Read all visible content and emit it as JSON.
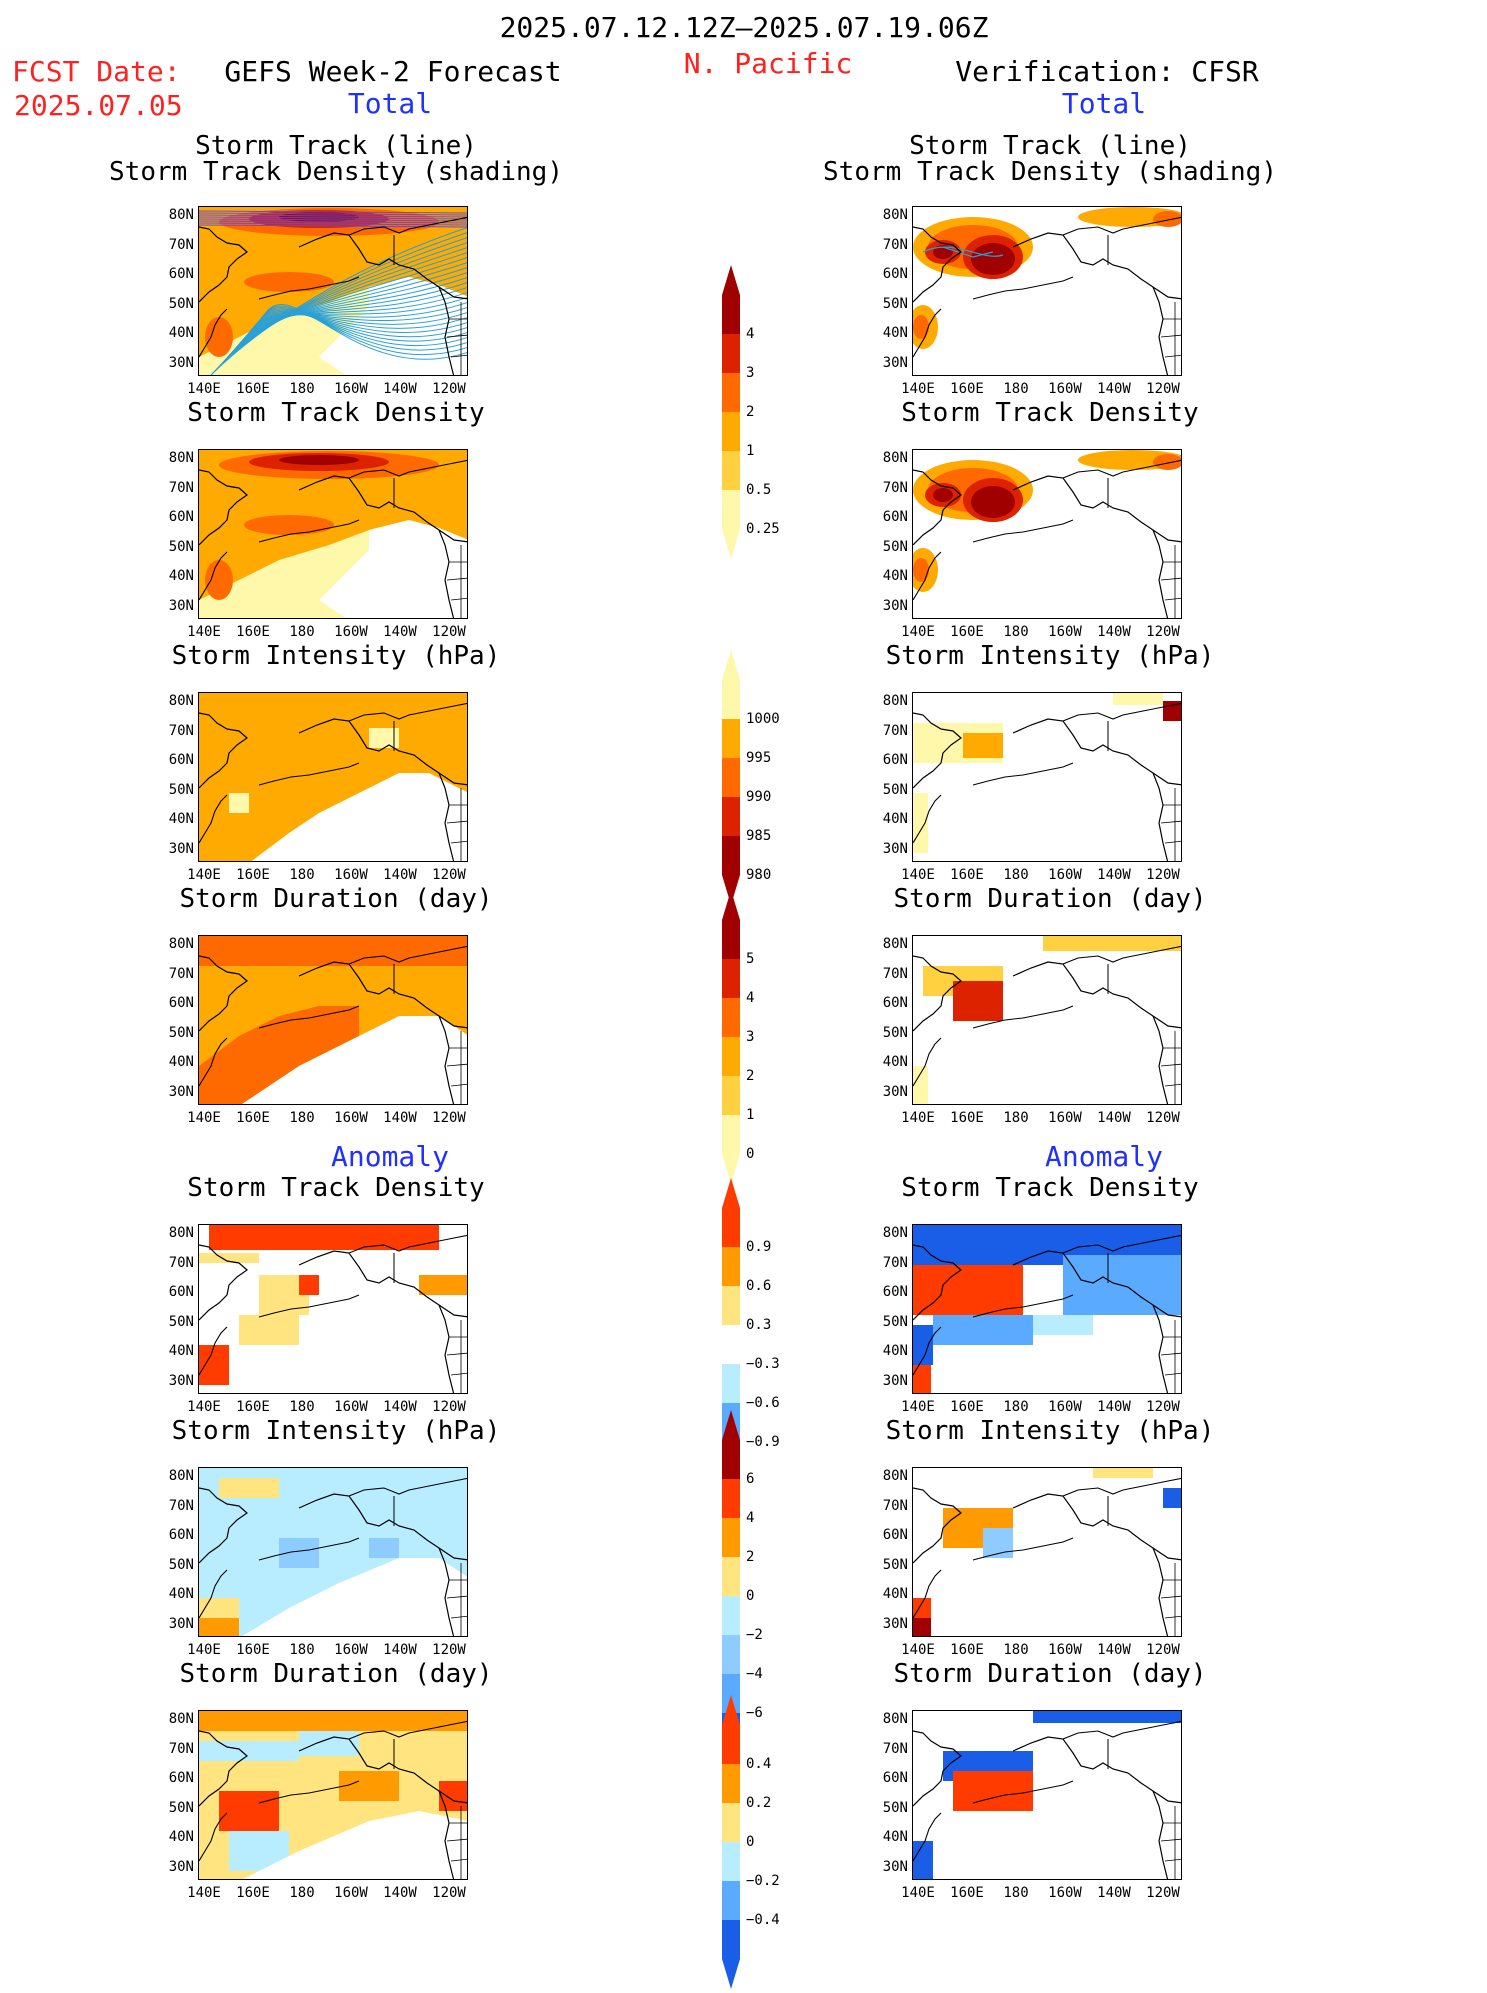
{
  "header": {
    "period": "2025.07.12.12Z–2025.07.19.06Z",
    "fcst_label": "FCST Date:",
    "fcst_date": "2025.07.05",
    "left_title": "GEFS Week-2 Forecast",
    "region": "N. Pacific",
    "right_title": "Verification: CFSR",
    "left_section_total": "Total",
    "right_section_total": "Total",
    "left_section_anom": "Anomaly",
    "right_section_anom": "Anomaly"
  },
  "panel_titles": {
    "track1": "Storm Track (line)",
    "track2": "Storm Track Density (shading)",
    "density": "Storm Track Density",
    "intensity": "Storm Intensity (hPa)",
    "duration": "Storm Duration (day)"
  },
  "axes": {
    "lat_labels": [
      "80N",
      "70N",
      "60N",
      "50N",
      "40N",
      "30N"
    ],
    "lon_labels": [
      "140E",
      "160E",
      "180",
      "160W",
      "140W",
      "120W"
    ]
  },
  "colorbars": {
    "density_total": {
      "labels": [
        "4",
        "3",
        "2",
        "1",
        "0.5",
        "0.25"
      ],
      "colors": [
        "#a00000",
        "#dd2200",
        "#ff6a00",
        "#ffaa00",
        "#ffd040",
        "#fff7aa"
      ]
    },
    "intensity_total": {
      "labels": [
        "1000",
        "995",
        "990",
        "985",
        "980"
      ],
      "colors": [
        "#fff7aa",
        "#ffaa00",
        "#ff6a00",
        "#dd2200",
        "#a00000"
      ]
    },
    "duration_total": {
      "labels": [
        "5",
        "4",
        "3",
        "2",
        "1",
        "0"
      ],
      "colors": [
        "#a00000",
        "#dd2200",
        "#ff6a00",
        "#ffaa00",
        "#ffd040",
        "#fff7aa"
      ]
    },
    "density_anom": {
      "labels": [
        "0.9",
        "0.6",
        "0.3",
        "−0.3",
        "−0.6",
        "−0.9"
      ],
      "colors": [
        "#ff3b00",
        "#ff9b00",
        "#ffe480",
        "#ffffff",
        "#b8ecff",
        "#5aaaff",
        "#1a5ee8"
      ]
    },
    "intensity_anom": {
      "labels": [
        "6",
        "4",
        "2",
        "0",
        "−2",
        "−4",
        "−6"
      ],
      "colors": [
        "#a00000",
        "#ff3b00",
        "#ff9b00",
        "#ffe480",
        "#b8ecff",
        "#8ecbff",
        "#5aaaff",
        "#1a5ee8"
      ]
    },
    "duration_anom": {
      "labels": [
        "0.4",
        "0.2",
        "0",
        "−0.2",
        "−0.4"
      ],
      "colors": [
        "#ff3b00",
        "#ff9b00",
        "#ffe480",
        "#b8ecff",
        "#5aaaff",
        "#1a5ee8"
      ]
    }
  },
  "colors": {
    "land_line": "#000000",
    "track_line": "#2aa0d8",
    "title_red": "#ff2020",
    "section_blue": "#2030ff"
  }
}
